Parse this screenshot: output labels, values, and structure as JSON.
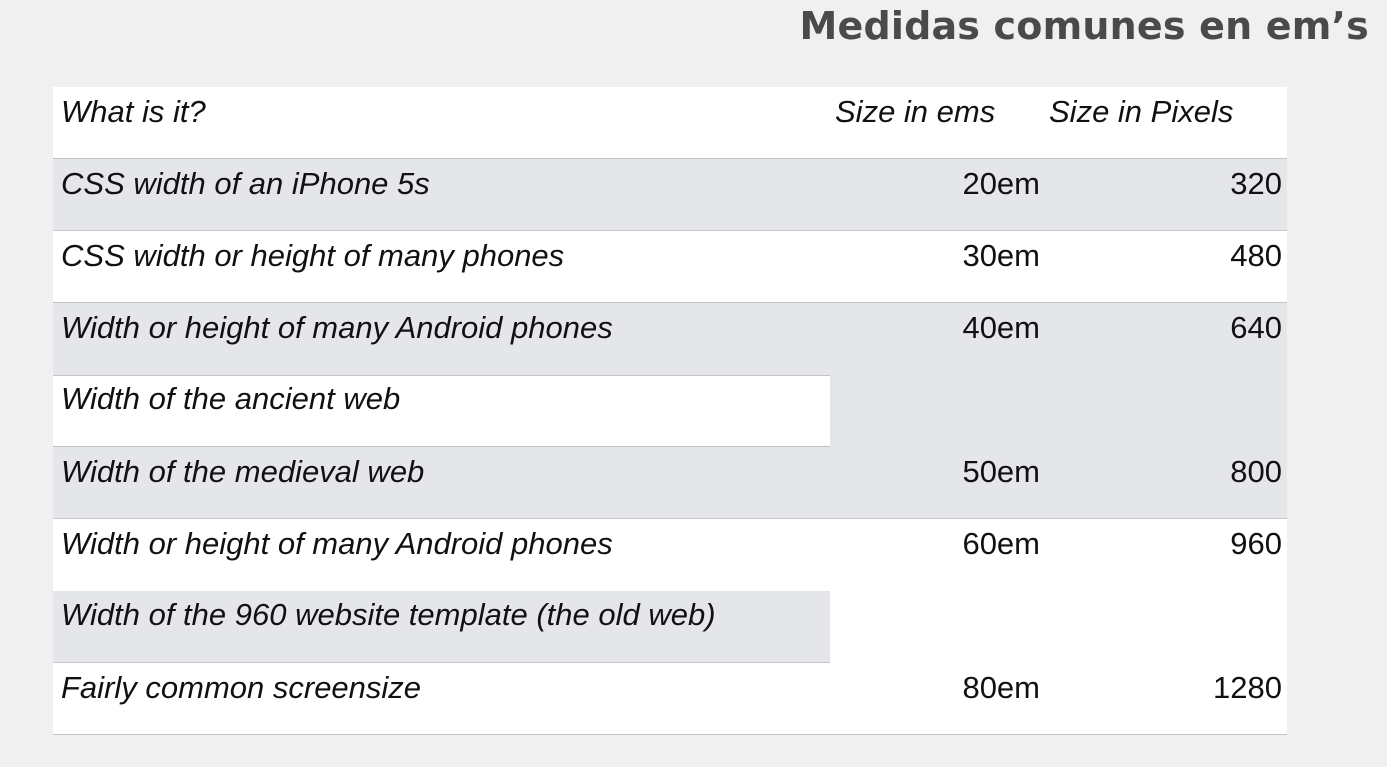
{
  "slide": {
    "title": "Medidas comunes en em’s"
  },
  "table": {
    "headers": {
      "what": "What is it?",
      "ems": "Size in ems",
      "pixels": "Size in Pixels"
    },
    "rows": [
      {
        "what": "CSS width of an iPhone 5s",
        "ems": "20em",
        "pixels": "320"
      },
      {
        "what": "CSS width or height of many phones",
        "ems": "30em",
        "pixels": "480"
      },
      {
        "what": "Width or height of many Android phones",
        "ems": "40em",
        "pixels": "640"
      },
      {
        "what": "Width of the ancient web",
        "ems": "",
        "pixels": ""
      },
      {
        "what": "Width of the medieval web",
        "ems": "50em",
        "pixels": "800"
      },
      {
        "what": "Width or height of many Android phones",
        "ems": "60em",
        "pixels": "960"
      },
      {
        "what": "Width of the 960 website template (the old web)",
        "ems": "",
        "pixels": ""
      },
      {
        "what": "Fairly common screensize",
        "ems": "80em",
        "pixels": "1280"
      }
    ]
  },
  "colors": {
    "background": "#f0f0f0",
    "row_shaded": "#e5e6ea",
    "row_plain": "#ffffff",
    "title": "#4a4a4a"
  }
}
